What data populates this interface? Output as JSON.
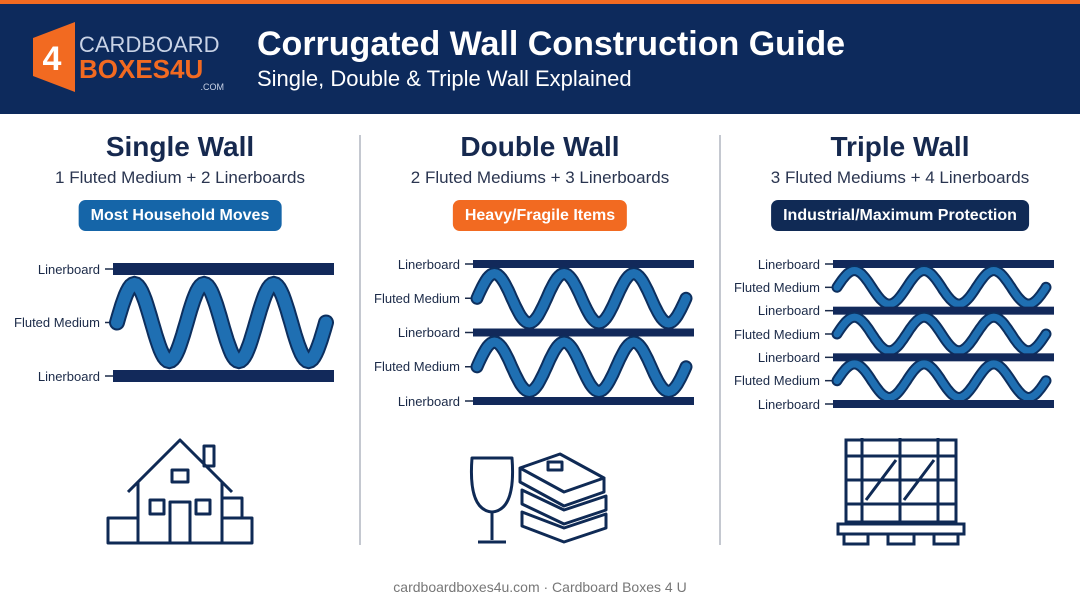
{
  "header": {
    "logo": {
      "number": "4",
      "line1": "CARDBOARD",
      "line2": "BOXES4U",
      "suffix": ".COM"
    },
    "title": "Corrugated Wall Construction Guide",
    "subtitle": "Single, Double & Triple Wall Explained"
  },
  "columns": [
    {
      "title": "Single Wall",
      "subtitle": "1 Fluted Medium + 2 Linerboards",
      "badge": "Most Household Moves",
      "layers": [
        "Linerboard",
        "Fluted Medium",
        "Linerboard"
      ]
    },
    {
      "title": "Double Wall",
      "subtitle": "2 Fluted Mediums + 3 Linerboards",
      "badge": "Heavy/Fragile Items",
      "layers": [
        "Linerboard",
        "Fluted Medium",
        "Linerboard",
        "Fluted Medium",
        "Linerboard"
      ]
    },
    {
      "title": "Triple Wall",
      "subtitle": "3 Fluted Mediums + 4 Linerboards",
      "badge": "Industrial/Maximum Protection",
      "layers": [
        "Linerboard",
        "Fluted Medium",
        "Linerboard",
        "Fluted Medium",
        "Linerboard",
        "Fluted Medium",
        "Linerboard"
      ]
    }
  ],
  "footer": "cardboardboxes4u.com · Cardboard Boxes 4 U"
}
